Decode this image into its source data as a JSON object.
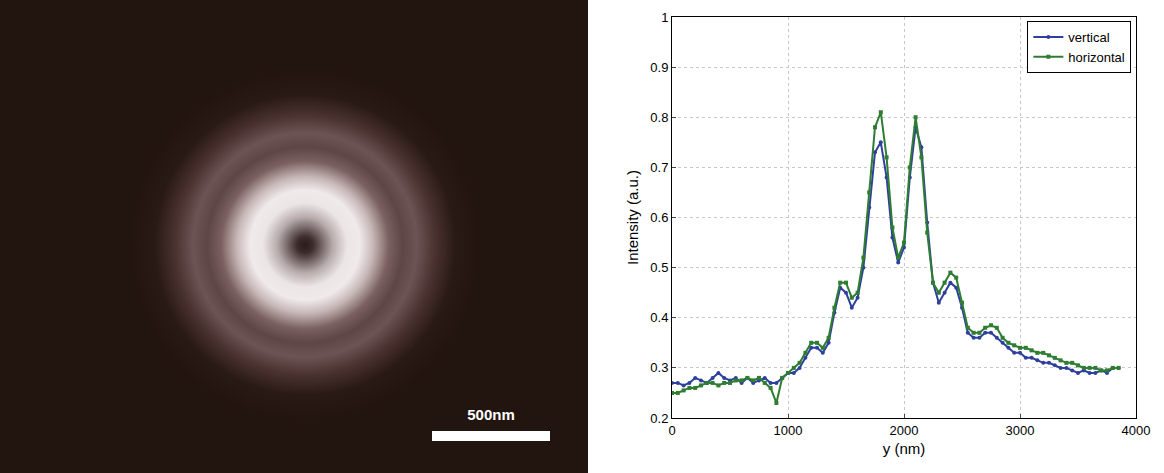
{
  "image": {
    "scale_bar": "500nm"
  },
  "chart_data": {
    "type": "line",
    "x_label": "y (nm)",
    "y_label": "Intensity (a.u.)",
    "x": [
      0,
      50,
      100,
      150,
      200,
      250,
      300,
      350,
      400,
      450,
      500,
      550,
      600,
      650,
      700,
      750,
      800,
      850,
      900,
      950,
      1000,
      1050,
      1100,
      1150,
      1200,
      1250,
      1300,
      1350,
      1400,
      1450,
      1500,
      1550,
      1600,
      1650,
      1700,
      1750,
      1800,
      1850,
      1900,
      1950,
      2000,
      2050,
      2100,
      2150,
      2200,
      2250,
      2300,
      2350,
      2400,
      2450,
      2500,
      2550,
      2600,
      2650,
      2700,
      2750,
      2800,
      2850,
      2900,
      2950,
      3000,
      3050,
      3100,
      3150,
      3200,
      3250,
      3300,
      3350,
      3400,
      3450,
      3500,
      3550,
      3600,
      3650,
      3700,
      3750,
      3800,
      3850
    ],
    "series": [
      {
        "name": "vertical",
        "color": "#2f3f9e",
        "marker": "circle",
        "line_style": "solid",
        "values": [
          0.27,
          0.27,
          0.265,
          0.27,
          0.28,
          0.275,
          0.27,
          0.28,
          0.29,
          0.28,
          0.275,
          0.28,
          0.27,
          0.28,
          0.27,
          0.275,
          0.28,
          0.27,
          0.27,
          0.28,
          0.29,
          0.29,
          0.3,
          0.32,
          0.34,
          0.34,
          0.33,
          0.35,
          0.41,
          0.46,
          0.45,
          0.42,
          0.44,
          0.5,
          0.62,
          0.73,
          0.75,
          0.68,
          0.56,
          0.51,
          0.54,
          0.68,
          0.78,
          0.74,
          0.59,
          0.47,
          0.43,
          0.45,
          0.47,
          0.46,
          0.42,
          0.37,
          0.36,
          0.36,
          0.37,
          0.37,
          0.36,
          0.35,
          0.34,
          0.33,
          0.33,
          0.32,
          0.32,
          0.315,
          0.31,
          0.31,
          0.305,
          0.3,
          0.3,
          0.295,
          0.29,
          0.295,
          0.29,
          0.29,
          0.295,
          0.29,
          0.3,
          0.3
        ]
      },
      {
        "name": "horizontal",
        "color": "#2e7d32",
        "marker": "square",
        "line_style": "solid",
        "values": [
          0.25,
          0.25,
          0.255,
          0.26,
          0.26,
          0.265,
          0.27,
          0.27,
          0.265,
          0.27,
          0.27,
          0.275,
          0.275,
          0.28,
          0.275,
          0.28,
          0.27,
          0.26,
          0.23,
          0.28,
          0.29,
          0.3,
          0.31,
          0.33,
          0.35,
          0.35,
          0.34,
          0.36,
          0.42,
          0.47,
          0.47,
          0.44,
          0.45,
          0.52,
          0.65,
          0.78,
          0.81,
          0.72,
          0.58,
          0.52,
          0.55,
          0.7,
          0.8,
          0.72,
          0.57,
          0.47,
          0.45,
          0.47,
          0.49,
          0.48,
          0.43,
          0.38,
          0.37,
          0.37,
          0.38,
          0.385,
          0.38,
          0.36,
          0.35,
          0.345,
          0.34,
          0.34,
          0.335,
          0.33,
          0.33,
          0.325,
          0.32,
          0.315,
          0.31,
          0.31,
          0.305,
          0.3,
          0.3,
          0.3,
          0.295,
          0.295,
          0.3,
          0.3
        ]
      }
    ],
    "xlim": [
      0,
      4000
    ],
    "xticks": [
      0,
      1000,
      2000,
      3000,
      4000
    ],
    "ylim": [
      0.2,
      1
    ],
    "yticks": [
      0.2,
      0.3,
      0.4,
      0.5,
      0.6,
      0.7,
      0.8,
      0.9,
      1
    ],
    "grid": true,
    "legend": "top right"
  }
}
